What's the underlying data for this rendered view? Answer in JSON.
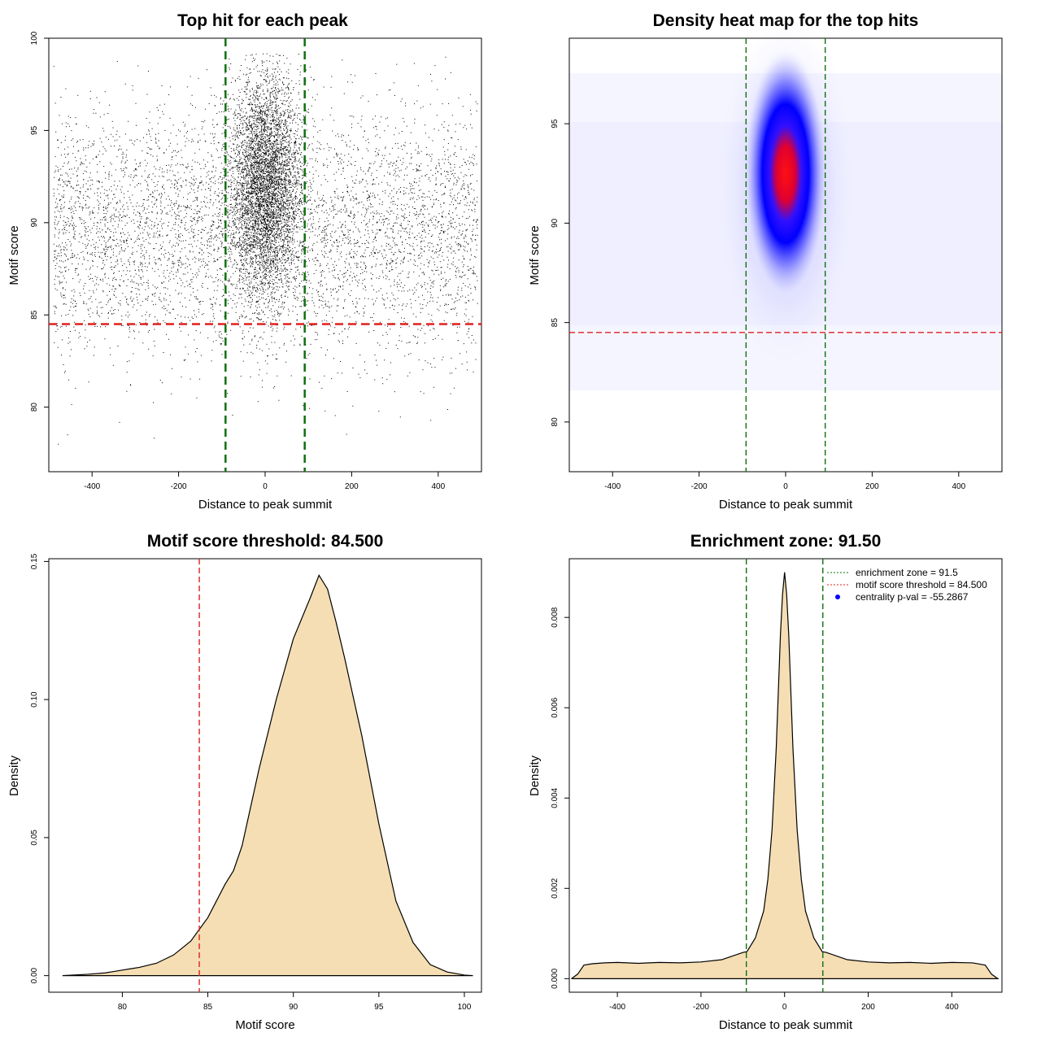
{
  "chart_data": [
    {
      "id": "scatter",
      "type": "scatter",
      "title": "Top hit for each peak",
      "xlabel": "Distance to peak summit",
      "ylabel": "Motif score",
      "xlim": [
        -500,
        500
      ],
      "ylim": [
        76.5,
        100
      ],
      "xticks": [
        -400,
        -200,
        0,
        200,
        400
      ],
      "yticks": [
        80,
        85,
        90,
        95,
        100
      ],
      "hlines": [
        {
          "value": 84.5,
          "color": "#e02020",
          "style": "dashed"
        }
      ],
      "vlines": [
        {
          "value": -91.5,
          "color": "#107010",
          "style": "dashed"
        },
        {
          "value": 91.5,
          "color": "#107010",
          "style": "dashed"
        }
      ],
      "points_note": "approx. 12000 top hits; dense central cluster around 0 bp, score ~92",
      "cluster": {
        "center_x": 0,
        "sd_x": 40,
        "center_score": 92,
        "sd_score": 3
      }
    },
    {
      "id": "heatmap",
      "type": "heatmap",
      "title": "Density heat map for the top hits",
      "xlabel": "Distance to peak summit",
      "ylabel": "Motif score",
      "xlim": [
        -500,
        500
      ],
      "ylim": [
        77.5,
        99.3
      ],
      "xticks": [
        -400,
        -200,
        0,
        200,
        400
      ],
      "yticks": [
        80,
        85,
        90,
        95
      ],
      "hotspot": {
        "x": 0,
        "y": 92.5
      },
      "colors": [
        "#ffffff",
        "#0000ff",
        "#ff0000"
      ],
      "hlines": [
        {
          "value": 84.5,
          "color": "#e02020",
          "style": "dashed"
        }
      ],
      "vlines": [
        {
          "value": -91.5,
          "color": "#107010",
          "style": "dashed"
        },
        {
          "value": 91.5,
          "color": "#107010",
          "style": "dashed"
        }
      ]
    },
    {
      "id": "score_density",
      "type": "area",
      "title": "Motif score threshold: 84.500",
      "xlabel": "Motif score",
      "ylabel": "Density",
      "xlim": [
        75.7,
        101
      ],
      "ylim": [
        -0.006,
        0.151
      ],
      "xticks": [
        80,
        85,
        90,
        95,
        100
      ],
      "yticks": [
        0.0,
        0.05,
        0.1,
        0.15
      ],
      "ytick_labels": [
        "0.00",
        "0.05",
        "0.10",
        "0.15"
      ],
      "fill": "#f5deb3",
      "x": [
        76.5,
        78,
        79,
        79.5,
        80,
        80.5,
        81,
        82,
        83,
        84,
        85,
        86,
        86.5,
        87,
        88,
        89,
        90,
        91,
        91.5,
        92,
        92.5,
        93,
        94,
        95,
        96,
        97,
        98,
        99,
        100,
        100.5
      ],
      "y": [
        0.0,
        0.0005,
        0.001,
        0.0015,
        0.002,
        0.0025,
        0.003,
        0.0045,
        0.0075,
        0.0125,
        0.021,
        0.033,
        0.038,
        0.047,
        0.075,
        0.1,
        0.122,
        0.137,
        0.145,
        0.14,
        0.128,
        0.115,
        0.087,
        0.055,
        0.027,
        0.012,
        0.004,
        0.0013,
        0.0002,
        0.0
      ],
      "vlines": [
        {
          "value": 84.5,
          "color": "#e02020",
          "style": "dashed"
        }
      ]
    },
    {
      "id": "distance_density",
      "type": "area",
      "title": "Enrichment zone: 91.50",
      "xlabel": "Distance to peak summit",
      "ylabel": "Density",
      "xlim": [
        -515,
        520
      ],
      "ylim": [
        -0.0003,
        0.0093
      ],
      "xticks": [
        -400,
        -200,
        0,
        200,
        400
      ],
      "yticks": [
        0.0,
        0.002,
        0.004,
        0.006,
        0.008
      ],
      "ytick_labels": [
        "0.000",
        "0.002",
        "0.004",
        "0.006",
        "0.008"
      ],
      "fill": "#f5deb3",
      "x": [
        -510,
        -495,
        -480,
        -460,
        -430,
        -400,
        -350,
        -300,
        -250,
        -200,
        -150,
        -100,
        -90,
        -70,
        -50,
        -40,
        -30,
        -20,
        -10,
        -5,
        0,
        5,
        10,
        20,
        30,
        40,
        50,
        70,
        90,
        100,
        150,
        200,
        250,
        300,
        350,
        400,
        450,
        480,
        495,
        510
      ],
      "y": [
        0.0,
        0.0001,
        0.0003,
        0.00033,
        0.00035,
        0.00036,
        0.00034,
        0.00036,
        0.00035,
        0.00037,
        0.00042,
        0.00058,
        0.0006,
        0.0009,
        0.0015,
        0.0022,
        0.0033,
        0.0051,
        0.0076,
        0.0085,
        0.009,
        0.0085,
        0.0076,
        0.0051,
        0.0033,
        0.0022,
        0.0015,
        0.0009,
        0.0006,
        0.00058,
        0.00042,
        0.00037,
        0.00035,
        0.00036,
        0.00034,
        0.00036,
        0.00035,
        0.0003,
        0.0001,
        0.0
      ],
      "vlines": [
        {
          "value": -91.5,
          "color": "#107010",
          "style": "dashed"
        },
        {
          "value": 91.5,
          "color": "#107010",
          "style": "dashed"
        }
      ],
      "legend": [
        {
          "label": "enrichment zone = 91.5",
          "color": "#107010",
          "kind": "dotted-line"
        },
        {
          "label": "motif score threshold = 84.500",
          "color": "#e02020",
          "kind": "dotted-line"
        },
        {
          "label": "centrality p-val = -55.2867",
          "color": "#0000ff",
          "kind": "point"
        }
      ],
      "legend_position": "top-right"
    }
  ]
}
